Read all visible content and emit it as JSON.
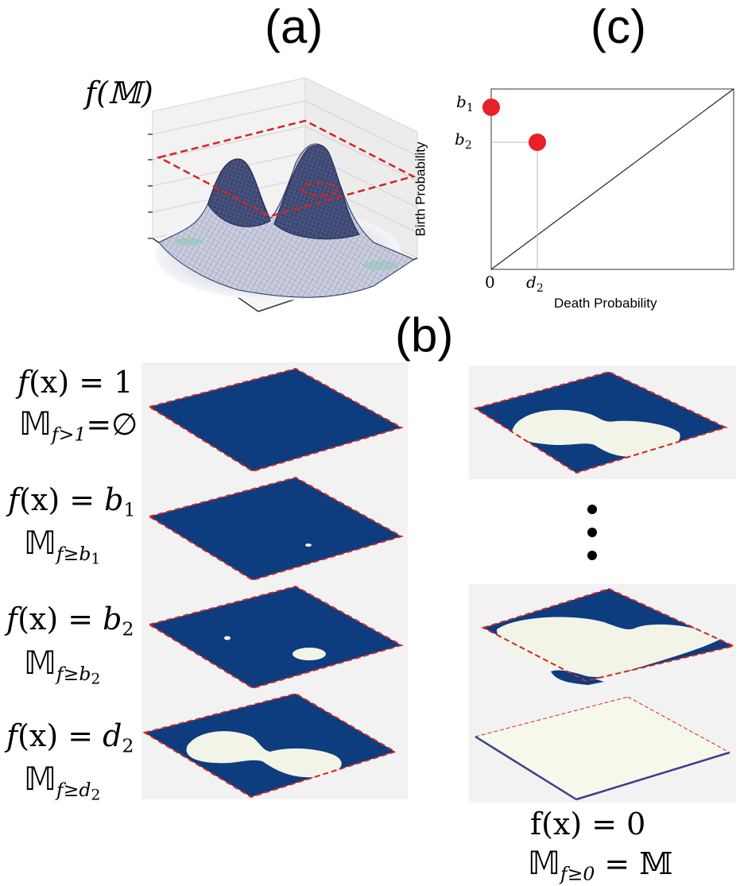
{
  "panels": {
    "a_label": "(a)",
    "b_label": "(b)",
    "c_label": "(c)"
  },
  "surface_plot": {
    "z_label": "f(𝕄)"
  },
  "persistence_diagram": {
    "xlabel": "Death Probability",
    "ylabel": "Birth Probability",
    "x_ticks": [
      "0",
      "d₂"
    ],
    "y_ticks": [
      "b₁",
      "b₂"
    ],
    "point_color": "#e8202a",
    "diagonal": true
  },
  "chart_data": {
    "type": "scatter",
    "xlabel": "Death Probability",
    "ylabel": "Birth Probability",
    "points": [
      {
        "label_birth": "b₁",
        "label_death": "0"
      },
      {
        "label_birth": "b₂",
        "label_death": "d₂"
      }
    ]
  },
  "filtration": {
    "left": [
      {
        "eq_lhs": "f",
        "eq_var": "(x) = ",
        "level": "1",
        "level_sub": "",
        "set_sub": "f>1",
        "set_tail": "=∅"
      },
      {
        "eq_lhs": "f",
        "eq_var": "(x) = ",
        "level": "b",
        "level_sub": "1",
        "set_sub": "f≥b",
        "set_subsub": "1"
      },
      {
        "eq_lhs": "f",
        "eq_var": "(x) = ",
        "level": "b",
        "level_sub": "2",
        "set_sub": "f≥b",
        "set_subsub": "2"
      },
      {
        "eq_lhs": "f",
        "eq_var": "(x) = ",
        "level": "d",
        "level_sub": "2",
        "set_sub": "f≥d",
        "set_subsub": "2"
      }
    ],
    "bottom": {
      "eq": "f(x) = 0",
      "set_sub": "f≥0",
      "set_tail": " = 𝕄"
    },
    "ellipsis": "⋮"
  },
  "colors": {
    "plane_blue": "#0d3d7e",
    "cream": "#f3f4e8",
    "red_dash": "#d42525",
    "surface": "#3a4670"
  }
}
